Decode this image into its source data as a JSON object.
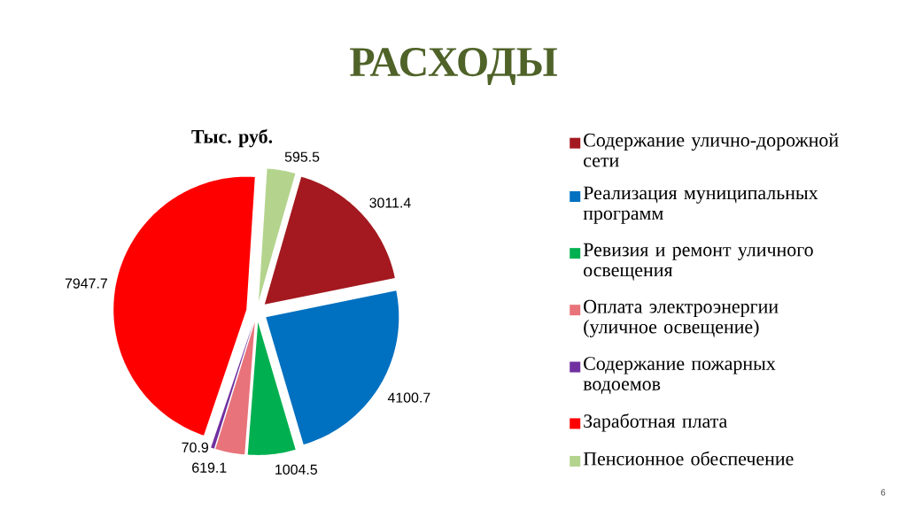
{
  "chart_data": {
    "type": "pie",
    "title": "РАСХОДЫ",
    "subtitle": "Тыс. руб.",
    "categories": [
      "Содержание улично-дорожной сети",
      "Реализация муниципальных программ",
      "Ревизия и ремонт уличного освещения",
      "Оплата электроэнергии (уличное освещение)",
      "Содержание пожарных водоемов",
      "Заработная плата",
      "Пенсионное обеспечение"
    ],
    "values": [
      3011.4,
      4100.7,
      1004.5,
      619.1,
      70.9,
      7947.7,
      595.5
    ],
    "colors": [
      "#a3191f",
      "#0070c0",
      "#00b050",
      "#e8737a",
      "#7030a0",
      "#ff0000",
      "#b4d48e"
    ],
    "data_labels": true,
    "legend": "right",
    "annotations": [
      "6"
    ]
  }
}
